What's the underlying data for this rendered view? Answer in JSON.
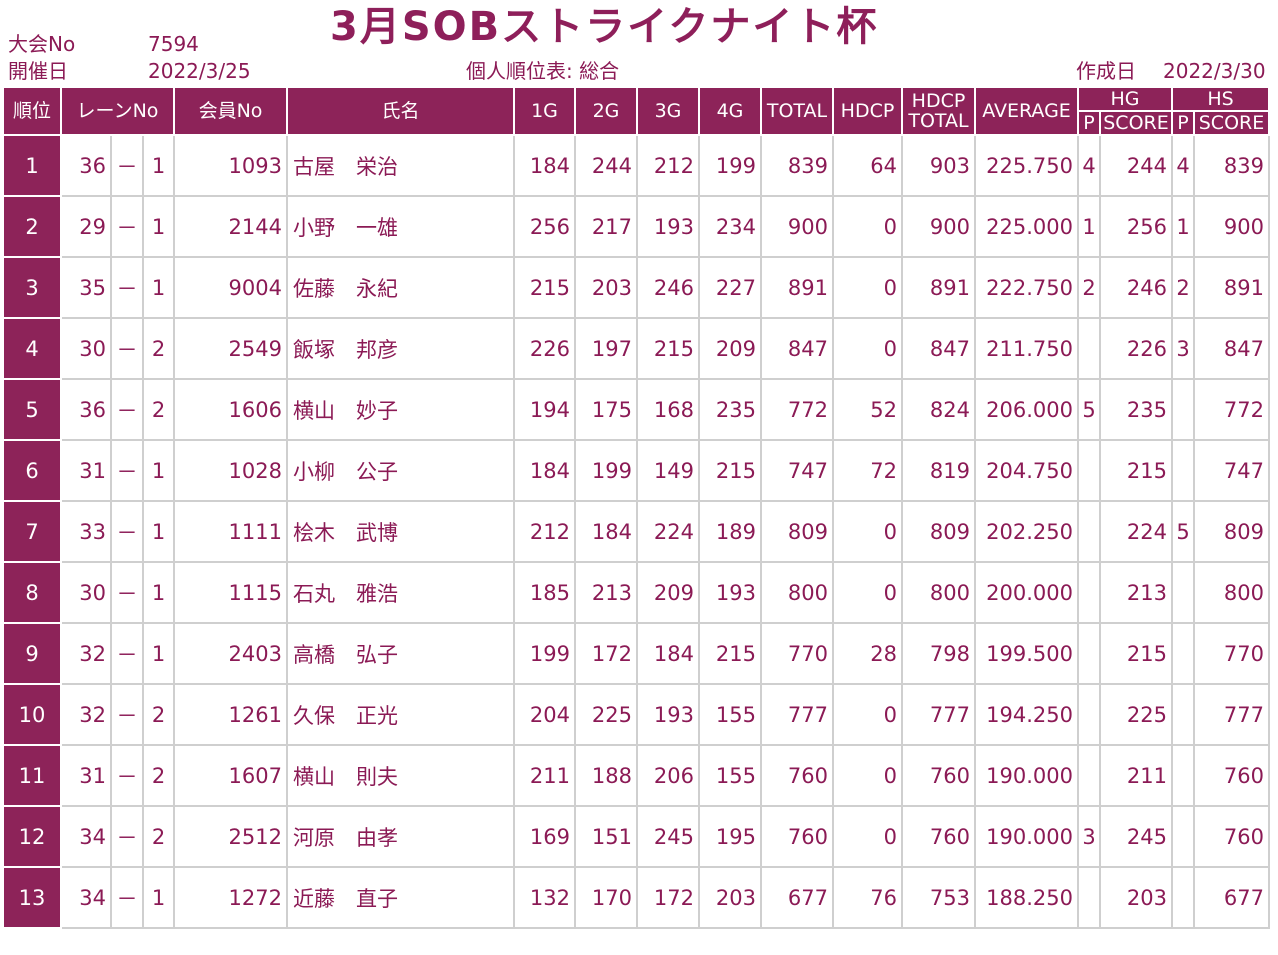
{
  "header": {
    "event_no_label": "大会No",
    "event_no": "7594",
    "date_label": "開催日",
    "date": "2022/3/25",
    "title": "3月SOBストライクナイト杯",
    "report_type": "個人順位表: 総合",
    "created_label": "作成日",
    "created_date": "2022/3/30"
  },
  "columns": {
    "rank": "順位",
    "lane": "レーンNo",
    "member": "会員No",
    "name": "氏名",
    "g1": "1G",
    "g2": "2G",
    "g3": "3G",
    "g4": "4G",
    "total": "TOTAL",
    "hdcp": "HDCP",
    "hdcp_total_1": "HDCP",
    "hdcp_total_2": "TOTAL",
    "average": "AVERAGE",
    "hg": "HG",
    "hg_p": "P",
    "hg_score": "SCORE",
    "hs": "HS",
    "hs_p": "P",
    "hs_score": "SCORE"
  },
  "rows": [
    {
      "rank": "1",
      "lane": "36",
      "dash": "－",
      "sub": "1",
      "member": "1093",
      "name": "古屋　栄治",
      "g1": "184",
      "g2": "244",
      "g3": "212",
      "g4": "199",
      "total": "839",
      "hdcp": "64",
      "hdcp_total": "903",
      "average": "225.750",
      "hg_p": "4",
      "hg_score": "244",
      "hs_p": "4",
      "hs_score": "839"
    },
    {
      "rank": "2",
      "lane": "29",
      "dash": "－",
      "sub": "1",
      "member": "2144",
      "name": "小野　一雄",
      "g1": "256",
      "g2": "217",
      "g3": "193",
      "g4": "234",
      "total": "900",
      "hdcp": "0",
      "hdcp_total": "900",
      "average": "225.000",
      "hg_p": "1",
      "hg_score": "256",
      "hs_p": "1",
      "hs_score": "900"
    },
    {
      "rank": "3",
      "lane": "35",
      "dash": "－",
      "sub": "1",
      "member": "9004",
      "name": "佐藤　永紀",
      "g1": "215",
      "g2": "203",
      "g3": "246",
      "g4": "227",
      "total": "891",
      "hdcp": "0",
      "hdcp_total": "891",
      "average": "222.750",
      "hg_p": "2",
      "hg_score": "246",
      "hs_p": "2",
      "hs_score": "891"
    },
    {
      "rank": "4",
      "lane": "30",
      "dash": "－",
      "sub": "2",
      "member": "2549",
      "name": "飯塚　邦彦",
      "g1": "226",
      "g2": "197",
      "g3": "215",
      "g4": "209",
      "total": "847",
      "hdcp": "0",
      "hdcp_total": "847",
      "average": "211.750",
      "hg_p": "",
      "hg_score": "226",
      "hs_p": "3",
      "hs_score": "847"
    },
    {
      "rank": "5",
      "lane": "36",
      "dash": "－",
      "sub": "2",
      "member": "1606",
      "name": "横山　妙子",
      "g1": "194",
      "g2": "175",
      "g3": "168",
      "g4": "235",
      "total": "772",
      "hdcp": "52",
      "hdcp_total": "824",
      "average": "206.000",
      "hg_p": "5",
      "hg_score": "235",
      "hs_p": "",
      "hs_score": "772"
    },
    {
      "rank": "6",
      "lane": "31",
      "dash": "－",
      "sub": "1",
      "member": "1028",
      "name": "小柳　公子",
      "g1": "184",
      "g2": "199",
      "g3": "149",
      "g4": "215",
      "total": "747",
      "hdcp": "72",
      "hdcp_total": "819",
      "average": "204.750",
      "hg_p": "",
      "hg_score": "215",
      "hs_p": "",
      "hs_score": "747"
    },
    {
      "rank": "7",
      "lane": "33",
      "dash": "－",
      "sub": "1",
      "member": "1111",
      "name": "桧木　武博",
      "g1": "212",
      "g2": "184",
      "g3": "224",
      "g4": "189",
      "total": "809",
      "hdcp": "0",
      "hdcp_total": "809",
      "average": "202.250",
      "hg_p": "",
      "hg_score": "224",
      "hs_p": "5",
      "hs_score": "809"
    },
    {
      "rank": "8",
      "lane": "30",
      "dash": "－",
      "sub": "1",
      "member": "1115",
      "name": "石丸　雅浩",
      "g1": "185",
      "g2": "213",
      "g3": "209",
      "g4": "193",
      "total": "800",
      "hdcp": "0",
      "hdcp_total": "800",
      "average": "200.000",
      "hg_p": "",
      "hg_score": "213",
      "hs_p": "",
      "hs_score": "800"
    },
    {
      "rank": "9",
      "lane": "32",
      "dash": "－",
      "sub": "1",
      "member": "2403",
      "name": "高橋　弘子",
      "g1": "199",
      "g2": "172",
      "g3": "184",
      "g4": "215",
      "total": "770",
      "hdcp": "28",
      "hdcp_total": "798",
      "average": "199.500",
      "hg_p": "",
      "hg_score": "215",
      "hs_p": "",
      "hs_score": "770"
    },
    {
      "rank": "10",
      "lane": "32",
      "dash": "－",
      "sub": "2",
      "member": "1261",
      "name": "久保　正光",
      "g1": "204",
      "g2": "225",
      "g3": "193",
      "g4": "155",
      "total": "777",
      "hdcp": "0",
      "hdcp_total": "777",
      "average": "194.250",
      "hg_p": "",
      "hg_score": "225",
      "hs_p": "",
      "hs_score": "777"
    },
    {
      "rank": "11",
      "lane": "31",
      "dash": "－",
      "sub": "2",
      "member": "1607",
      "name": "横山　則夫",
      "g1": "211",
      "g2": "188",
      "g3": "206",
      "g4": "155",
      "total": "760",
      "hdcp": "0",
      "hdcp_total": "760",
      "average": "190.000",
      "hg_p": "",
      "hg_score": "211",
      "hs_p": "",
      "hs_score": "760"
    },
    {
      "rank": "12",
      "lane": "34",
      "dash": "－",
      "sub": "2",
      "member": "2512",
      "name": "河原　由孝",
      "g1": "169",
      "g2": "151",
      "g3": "245",
      "g4": "195",
      "total": "760",
      "hdcp": "0",
      "hdcp_total": "760",
      "average": "190.000",
      "hg_p": "3",
      "hg_score": "245",
      "hs_p": "",
      "hs_score": "760"
    },
    {
      "rank": "13",
      "lane": "34",
      "dash": "－",
      "sub": "1",
      "member": "1272",
      "name": "近藤　直子",
      "g1": "132",
      "g2": "170",
      "g3": "172",
      "g4": "203",
      "total": "677",
      "hdcp": "76",
      "hdcp_total": "753",
      "average": "188.250",
      "hg_p": "",
      "hg_score": "203",
      "hs_p": "",
      "hs_score": "677"
    }
  ]
}
